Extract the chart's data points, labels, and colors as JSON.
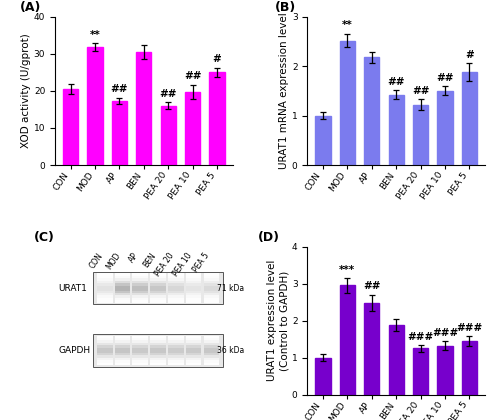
{
  "categories": [
    "CON",
    "MOD",
    "AP",
    "BEN",
    "PEA 20",
    "PEA 10",
    "PEA 5"
  ],
  "panel_A": {
    "title": "(A)",
    "ylabel": "XOD activity (U/gprot)",
    "values": [
      20.5,
      31.8,
      17.3,
      30.6,
      16.0,
      19.8,
      25.0
    ],
    "errors": [
      1.3,
      1.0,
      0.9,
      1.9,
      0.9,
      1.9,
      1.3
    ],
    "color": "#FF00FF",
    "ylim": [
      0,
      40
    ],
    "yticks": [
      0,
      10,
      20,
      30,
      40
    ],
    "annotations": [
      "",
      "**",
      "##",
      "",
      "##",
      "##",
      "#"
    ]
  },
  "panel_B": {
    "title": "(B)",
    "ylabel": "URAT1 mRNA expression level",
    "values": [
      1.0,
      2.52,
      2.18,
      1.42,
      1.22,
      1.5,
      1.88
    ],
    "errors": [
      0.07,
      0.14,
      0.11,
      0.09,
      0.11,
      0.09,
      0.18
    ],
    "color": "#7B7BEE",
    "ylim": [
      0,
      3
    ],
    "yticks": [
      0,
      1,
      2,
      3
    ],
    "annotations": [
      "",
      "**",
      "",
      "##",
      "##",
      "##",
      "#"
    ]
  },
  "panel_D": {
    "title": "(D)",
    "ylabel": "URAT1 expression level\n(Control to GAPDH)",
    "values": [
      1.0,
      2.95,
      2.48,
      1.88,
      1.25,
      1.32,
      1.45
    ],
    "errors": [
      0.09,
      0.2,
      0.22,
      0.16,
      0.1,
      0.12,
      0.14
    ],
    "color": "#7700CC",
    "ylim": [
      0,
      4
    ],
    "yticks": [
      0,
      1,
      2,
      3,
      4
    ],
    "annotations": [
      "",
      "***",
      "##",
      "",
      "###",
      "###",
      "###"
    ]
  },
  "panel_C": {
    "title": "(C)",
    "kda_labels": [
      "71 kDa",
      "36 kDa"
    ],
    "urat1_intensities": [
      0.3,
      0.78,
      0.68,
      0.58,
      0.42,
      0.28,
      0.38
    ],
    "gapdh_intensities": [
      0.58,
      0.6,
      0.56,
      0.58,
      0.54,
      0.56,
      0.58
    ]
  },
  "tick_label_rotation": 55,
  "tick_fontsize": 6.5,
  "axis_label_fontsize": 7.5,
  "annotation_fontsize": 7.5,
  "panel_label_fontsize": 9,
  "bar_width": 0.62
}
